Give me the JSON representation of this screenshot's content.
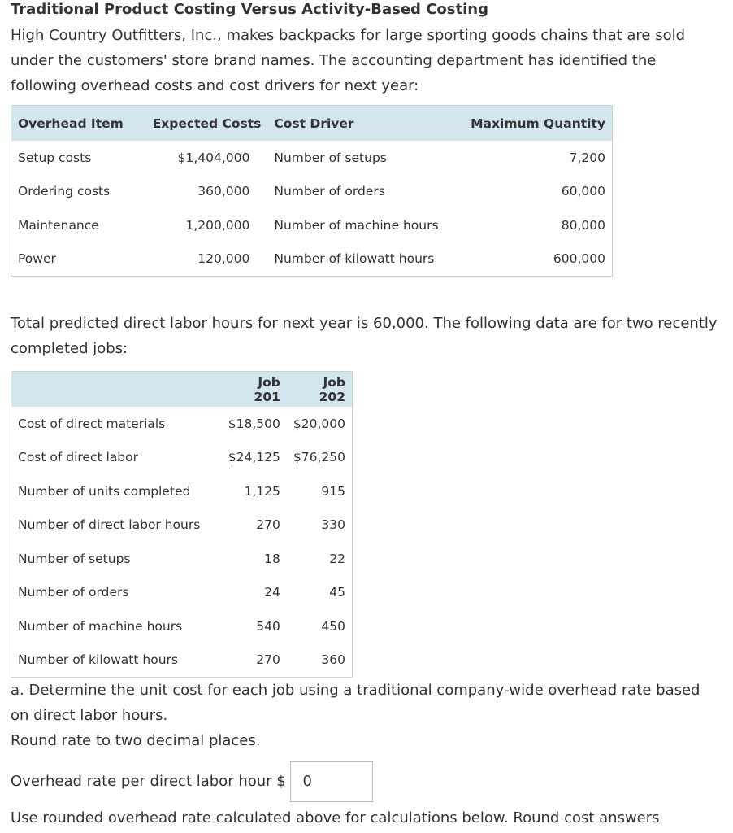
{
  "title": "Traditional Product Costing Versus Activity-Based Costing",
  "intro": "High Country Outfitters, Inc., makes backpacks for large sporting goods chains that are sold under the customers' store brand names. The accounting department has identified the following overhead costs and cost drivers for next year:",
  "table1": {
    "headers": [
      "Overhead Item",
      "Expected Costs",
      "Cost Driver",
      "Maximum Quantity"
    ],
    "rows": [
      [
        "Setup costs",
        "$1,404,000",
        "Number of setups",
        "7,200"
      ],
      [
        "Ordering costs",
        "360,000",
        "Number of orders",
        "60,000"
      ],
      [
        "Maintenance",
        "1,200,000",
        "Number of machine hours",
        "80,000"
      ],
      [
        "Power",
        "120,000",
        "Number of kilowatt hours",
        "600,000"
      ]
    ]
  },
  "paragraph2": "Total predicted direct labor hours for next year is 60,000. The following data are for two recently completed jobs:",
  "table2": {
    "headers": [
      "Job 201",
      "Job 202"
    ],
    "rows": [
      [
        "Cost of direct materials",
        "$18,500",
        "$20,000"
      ],
      [
        "Cost of direct labor",
        "$24,125",
        "$76,250"
      ],
      [
        "Number of units completed",
        "1,125",
        "915"
      ],
      [
        "Number of direct labor hours",
        "270",
        "330"
      ],
      [
        "Number of setups",
        "18",
        "22"
      ],
      [
        "Number of orders",
        "24",
        "45"
      ],
      [
        "Number of machine hours",
        "540",
        "450"
      ],
      [
        "Number of kilowatt hours",
        "270",
        "360"
      ]
    ]
  },
  "question_a": "a. Determine the unit cost for each job using a traditional company-wide overhead rate based on direct labor hours.",
  "round_note": "Round rate to two decimal places.",
  "input_label": "Overhead rate per direct labor hour $",
  "input_value": "0",
  "note": "Use rounded overhead rate calculated above for calculations below. Round cost answers"
}
